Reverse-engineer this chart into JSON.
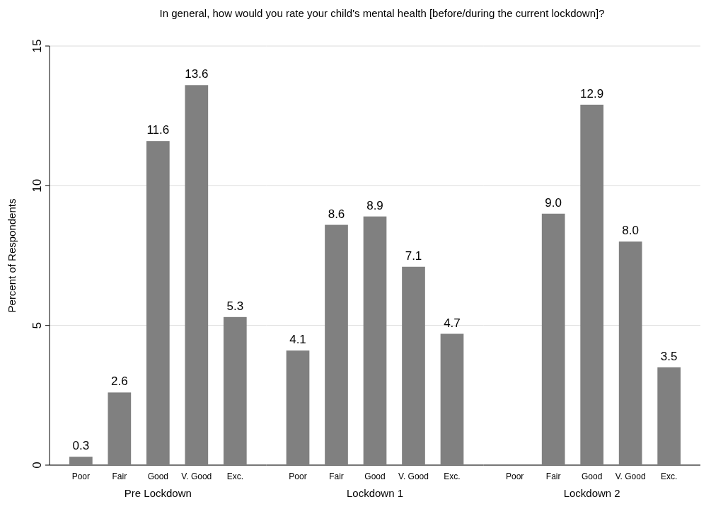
{
  "chart_data": [
    {
      "type": "bar",
      "title": "In general, how would you rate your child's mental health [before/during the current lockdown]?",
      "xlabel": "Pre Lockdown",
      "ylabel": "Percent of Respondents",
      "categories": [
        "Poor",
        "Fair",
        "Good",
        "V. Good",
        "Exc."
      ],
      "values": [
        0.3,
        2.6,
        11.6,
        13.6,
        5.3
      ],
      "value_labels": [
        "0.3",
        "2.6",
        "11.6",
        "13.6",
        "5.3"
      ],
      "color": "#808080",
      "ylim": [
        0,
        15
      ],
      "yticks": [
        0,
        5,
        10,
        15
      ],
      "grid": "y"
    },
    {
      "type": "bar",
      "xlabel": "Lockdown 1",
      "categories": [
        "Poor",
        "Fair",
        "Good",
        "V. Good",
        "Exc."
      ],
      "values": [
        4.1,
        8.6,
        8.9,
        7.1,
        4.7
      ],
      "value_labels": [
        "4.1",
        "8.6",
        "8.9",
        "7.1",
        "4.7"
      ],
      "color": "#808080",
      "ylim": [
        0,
        15
      ],
      "yticks": [
        0,
        5,
        10,
        15
      ],
      "grid": "y",
      "tick_labels": "x"
    },
    {
      "type": "bar",
      "xlabel": "Lockdown 2",
      "categories": [
        "Poor",
        "Fair",
        "Good",
        "V. Good",
        "Exc."
      ],
      "values": [
        null,
        9,
        12.9,
        8,
        3.5
      ],
      "value_labels": [
        null,
        "9.0",
        "12.9",
        "8.0",
        "3.5"
      ],
      "color": "#808080",
      "ylim": [
        0,
        15
      ],
      "yticks": [
        0,
        5,
        10,
        15
      ],
      "grid": "y",
      "tick_labels": "x"
    }
  ]
}
